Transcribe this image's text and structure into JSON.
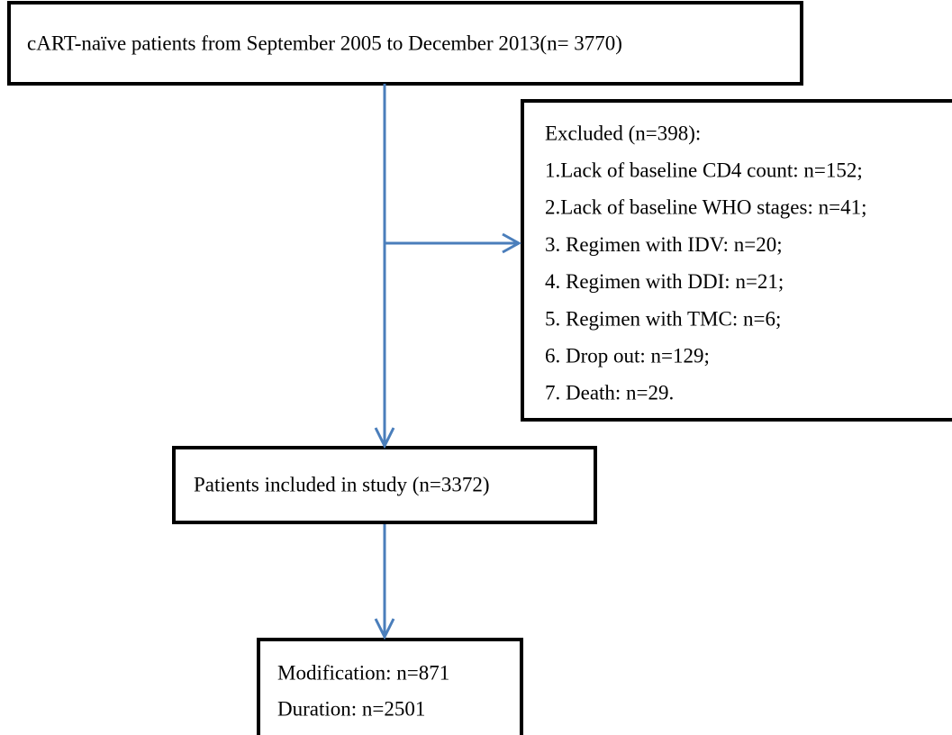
{
  "nodes": [
    {
      "lines": [
        "cART-naïve patients from September 2005 to December 2013(n= 3770)"
      ]
    },
    {
      "lines": [
        "Excluded (n=398):",
        "1.Lack of baseline CD4 count: n=152;",
        "2.Lack of baseline WHO stages: n=41;",
        "3. Regimen with IDV: n=20;",
        "4. Regimen with DDI: n=21;",
        "5. Regimen with TMC: n=6;",
        "6. Drop out: n=129;",
        "7. Death: n=29."
      ]
    },
    {
      "lines": [
        "Patients included in study (n=3372)"
      ]
    },
    {
      "lines": [
        "Modification: n=871",
        "Duration: n=2501"
      ]
    }
  ]
}
